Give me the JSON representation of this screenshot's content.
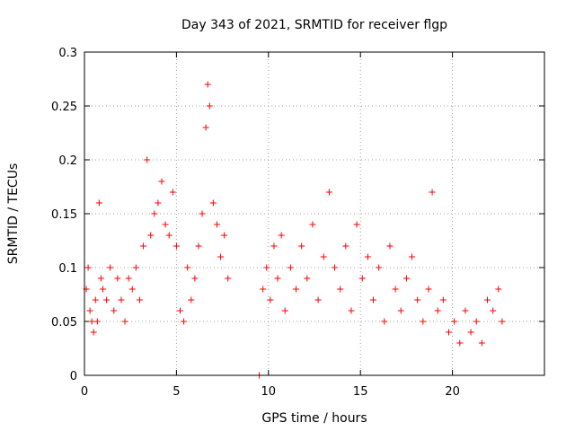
{
  "chart_data": {
    "type": "scatter",
    "title": "Day 343 of 2021, SRMTID for receiver flgp",
    "xlabel": "GPS time / hours",
    "ylabel": "SRMTID / TECUs",
    "xlim": [
      0,
      25
    ],
    "ylim": [
      0,
      0.3
    ],
    "xticks": [
      0,
      5,
      10,
      15,
      20
    ],
    "yticks": [
      0,
      0.05,
      0.1,
      0.15,
      0.2,
      0.25,
      0.3
    ],
    "xtick_labels": [
      "0",
      "5",
      "10",
      "15",
      "20"
    ],
    "ytick_labels": [
      "0",
      "0.05",
      "0.1",
      "0.15",
      "0.2",
      "0.25",
      "0.3"
    ],
    "grid": true,
    "marker": "+",
    "color": "#ff0000",
    "series": [
      {
        "name": "SRMTID",
        "points": [
          [
            0.1,
            0.08
          ],
          [
            0.2,
            0.1
          ],
          [
            0.3,
            0.06
          ],
          [
            0.4,
            0.05
          ],
          [
            0.5,
            0.04
          ],
          [
            0.6,
            0.07
          ],
          [
            0.7,
            0.05
          ],
          [
            0.8,
            0.16
          ],
          [
            0.9,
            0.09
          ],
          [
            1.0,
            0.08
          ],
          [
            1.2,
            0.07
          ],
          [
            1.4,
            0.1
          ],
          [
            1.6,
            0.06
          ],
          [
            1.8,
            0.09
          ],
          [
            2.0,
            0.07
          ],
          [
            2.2,
            0.05
          ],
          [
            2.4,
            0.09
          ],
          [
            2.6,
            0.08
          ],
          [
            2.8,
            0.1
          ],
          [
            3.0,
            0.07
          ],
          [
            3.2,
            0.12
          ],
          [
            3.4,
            0.2
          ],
          [
            3.6,
            0.13
          ],
          [
            3.8,
            0.15
          ],
          [
            4.0,
            0.16
          ],
          [
            4.2,
            0.18
          ],
          [
            4.4,
            0.14
          ],
          [
            4.6,
            0.13
          ],
          [
            4.8,
            0.17
          ],
          [
            5.0,
            0.12
          ],
          [
            5.2,
            0.06
          ],
          [
            5.4,
            0.05
          ],
          [
            5.6,
            0.1
          ],
          [
            5.8,
            0.07
          ],
          [
            6.0,
            0.09
          ],
          [
            6.2,
            0.12
          ],
          [
            6.4,
            0.15
          ],
          [
            6.6,
            0.23
          ],
          [
            6.7,
            0.27
          ],
          [
            6.8,
            0.25
          ],
          [
            7.0,
            0.16
          ],
          [
            7.2,
            0.14
          ],
          [
            7.4,
            0.11
          ],
          [
            7.6,
            0.13
          ],
          [
            7.8,
            0.09
          ],
          [
            9.5,
            0.0
          ],
          [
            9.7,
            0.08
          ],
          [
            9.9,
            0.1
          ],
          [
            10.1,
            0.07
          ],
          [
            10.3,
            0.12
          ],
          [
            10.5,
            0.09
          ],
          [
            10.7,
            0.13
          ],
          [
            10.9,
            0.06
          ],
          [
            11.2,
            0.1
          ],
          [
            11.5,
            0.08
          ],
          [
            11.8,
            0.12
          ],
          [
            12.1,
            0.09
          ],
          [
            12.4,
            0.14
          ],
          [
            12.7,
            0.07
          ],
          [
            13.0,
            0.11
          ],
          [
            13.3,
            0.17
          ],
          [
            13.6,
            0.1
          ],
          [
            13.9,
            0.08
          ],
          [
            14.2,
            0.12
          ],
          [
            14.5,
            0.06
          ],
          [
            14.8,
            0.14
          ],
          [
            15.1,
            0.09
          ],
          [
            15.4,
            0.11
          ],
          [
            15.7,
            0.07
          ],
          [
            16.0,
            0.1
          ],
          [
            16.3,
            0.05
          ],
          [
            16.6,
            0.12
          ],
          [
            16.9,
            0.08
          ],
          [
            17.2,
            0.06
          ],
          [
            17.5,
            0.09
          ],
          [
            17.8,
            0.11
          ],
          [
            18.1,
            0.07
          ],
          [
            18.4,
            0.05
          ],
          [
            18.7,
            0.08
          ],
          [
            18.9,
            0.17
          ],
          [
            19.2,
            0.06
          ],
          [
            19.5,
            0.07
          ],
          [
            19.8,
            0.04
          ],
          [
            20.1,
            0.05
          ],
          [
            20.4,
            0.03
          ],
          [
            20.7,
            0.06
          ],
          [
            21.0,
            0.04
          ],
          [
            21.3,
            0.05
          ],
          [
            21.6,
            0.03
          ],
          [
            21.9,
            0.07
          ],
          [
            22.2,
            0.06
          ],
          [
            22.5,
            0.08
          ],
          [
            22.7,
            0.05
          ]
        ]
      }
    ]
  }
}
